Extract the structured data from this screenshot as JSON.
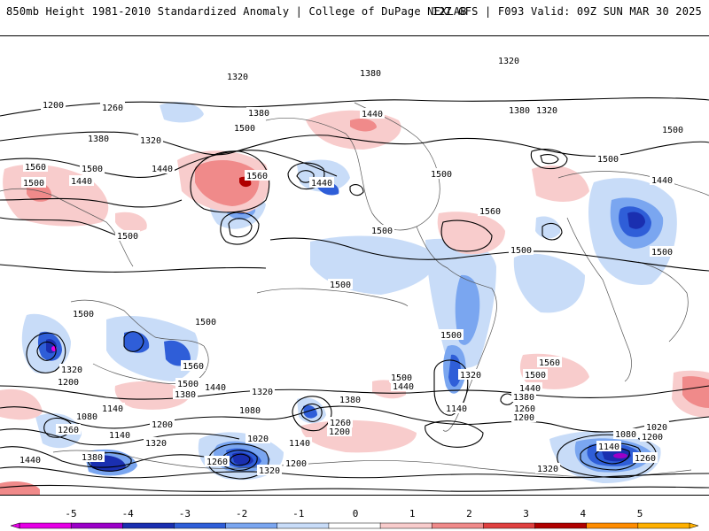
{
  "header": {
    "title": "850mb Height 1981-2010 Standardized Anomaly | College of DuPage NEXLAB",
    "run_info": "12Z GFS | F093 Valid: 09Z SUN MAR 30 2025"
  },
  "contour_labels": [
    "1320",
    "1380",
    "1320",
    "1200",
    "1260",
    "1380",
    "1320",
    "1380",
    "1440",
    "1500",
    "1440",
    "1560",
    "1380",
    "1320",
    "1500",
    "1560",
    "1500",
    "1440",
    "1440",
    "1500",
    "1500",
    "1560",
    "1440",
    "1500",
    "1500",
    "1500",
    "1500",
    "1500",
    "1500",
    "1500",
    "1500",
    "1500",
    "1560",
    "1500",
    "1560",
    "1320",
    "1200",
    "1500",
    "1440",
    "1380",
    "1320",
    "1500",
    "1440",
    "1380",
    "1260",
    "1140",
    "1080",
    "1260",
    "1140",
    "1200",
    "1080",
    "1020",
    "1140",
    "1200",
    "1500",
    "1440",
    "1380",
    "1320",
    "1260",
    "1200",
    "1020",
    "1080",
    "1200",
    "1140",
    "1260",
    "1440",
    "1380",
    "1320",
    "1260",
    "1200",
    "1320",
    "1140",
    "1320"
  ],
  "colorbar": {
    "ticks": [
      "-5",
      "-4",
      "-3",
      "-2",
      "-1",
      "0",
      "1",
      "2",
      "3",
      "4",
      "5"
    ],
    "colors": [
      "#e600e6",
      "#9b00c8",
      "#1a2fb0",
      "#2f5ed8",
      "#7aa6f0",
      "#c8dcf8",
      "#ffffff",
      "#f8cccc",
      "#f08a8a",
      "#e04040",
      "#b00000",
      "#ff8c00",
      "#ffb000"
    ]
  }
}
